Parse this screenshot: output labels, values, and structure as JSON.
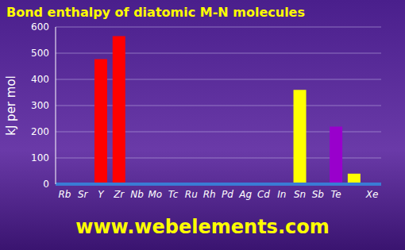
{
  "chart_data": {
    "type": "bar",
    "title": "Bond enthalpy of diatomic M-N molecules",
    "y_label": "kJ per mol",
    "footer": "www.webelements.com",
    "categories": [
      "Rb",
      "Sr",
      "Y",
      "Zr",
      "Nb",
      "Mo",
      "Tc",
      "Ru",
      "Rh",
      "Pd",
      "Ag",
      "Cd",
      "In",
      "Sn",
      "Sb",
      "Te",
      null,
      "Xe"
    ],
    "values": [
      null,
      null,
      477,
      565,
      null,
      null,
      null,
      null,
      null,
      null,
      null,
      null,
      null,
      360,
      null,
      220,
      40,
      null
    ],
    "colors": [
      "#ffffff",
      "#ffffff",
      "#ff0000",
      "#ff0000",
      "#ff0000",
      "#ff0000",
      "#ff0000",
      "#ff0000",
      "#ff0000",
      "#ff0000",
      "#ff0000",
      "#ff0000",
      "#ffff00",
      "#ffff00",
      "#ffff00",
      "#9900cc",
      "#ffff00",
      "#ffff00"
    ],
    "ylim": [
      0,
      600
    ],
    "yticks": [
      0,
      100,
      200,
      300,
      400,
      500,
      600
    ],
    "grid": true
  }
}
